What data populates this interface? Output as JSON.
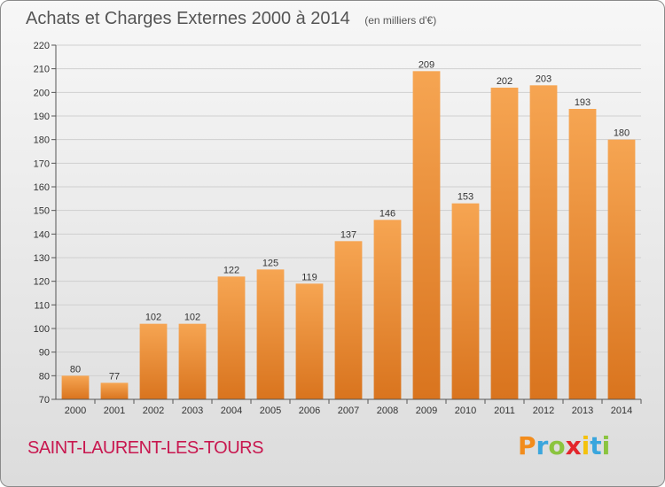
{
  "chart_data": {
    "type": "bar",
    "title": "Achats et Charges Externes 2000 à 2014",
    "subtitle": "(en milliers d'€)",
    "categories": [
      "2000",
      "2001",
      "2002",
      "2003",
      "2004",
      "2005",
      "2006",
      "2007",
      "2008",
      "2009",
      "2010",
      "2011",
      "2012",
      "2013",
      "2014"
    ],
    "values": [
      80,
      77,
      102,
      102,
      122,
      125,
      119,
      137,
      146,
      209,
      153,
      202,
      203,
      193,
      180
    ],
    "xlabel": "",
    "ylabel": "",
    "ylim": [
      70,
      220
    ],
    "yticks": [
      70,
      80,
      90,
      100,
      110,
      120,
      130,
      140,
      150,
      160,
      170,
      180,
      190,
      200,
      210,
      220
    ],
    "grid": true,
    "colors": {
      "bar_top": "#f6a552",
      "bar_bottom": "#d9741e",
      "grid": "#cfcfcf"
    }
  },
  "footer": {
    "place": "SAINT-LAURENT-LES-TOURS",
    "place_color": "#c8174f",
    "brand": "Proxiti",
    "brand_letters": [
      {
        "ch": "P",
        "color": "#f28c1c"
      },
      {
        "ch": "r",
        "color": "#3aa6dd"
      },
      {
        "ch": "o",
        "color": "#8bc43f"
      },
      {
        "ch": "x",
        "color": "#e3262c"
      },
      {
        "ch": "i",
        "color": "#f4c20d"
      },
      {
        "ch": "t",
        "color": "#3aa6dd"
      },
      {
        "ch": "i",
        "color": "#8bc43f"
      }
    ]
  }
}
